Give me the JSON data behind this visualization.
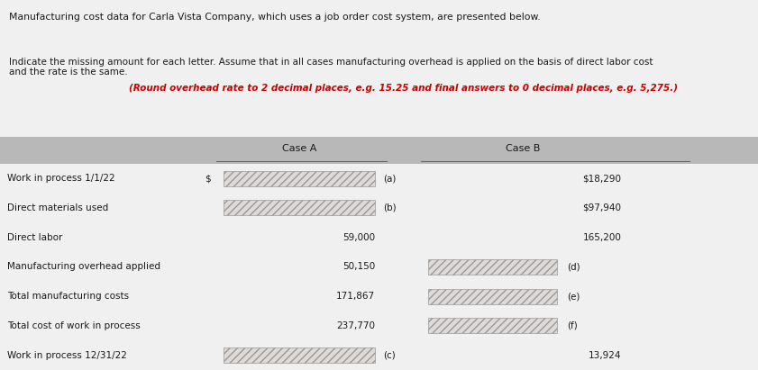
{
  "title_line1": "Manufacturing cost data for Carla Vista Company, which uses a job order cost system, are presented below.",
  "normal_text": "Indicate the missing amount for each letter. Assume that in all cases manufacturing overhead is applied on the basis of direct labor cost\nand the rate is the same. ",
  "bold_text": "(Round overhead rate to 2 decimal places, e.g. 15.25 and final answers to 0 decimal places, e.g. 5,275.)",
  "header_case_a": "Case A",
  "header_case_b": "Case B",
  "rows": [
    {
      "label": "Work in process 1/1/22",
      "case_a_prefix": "$",
      "case_a_value": "",
      "case_a_letter": "(a)",
      "case_a_blank": true,
      "case_b_value": "$18,290",
      "case_b_letter": "",
      "case_b_blank": false
    },
    {
      "label": "Direct materials used",
      "case_a_prefix": "",
      "case_a_value": "",
      "case_a_letter": "(b)",
      "case_a_blank": true,
      "case_b_value": "$97,940",
      "case_b_letter": "",
      "case_b_blank": false
    },
    {
      "label": "Direct labor",
      "case_a_prefix": "",
      "case_a_value": "59,000",
      "case_a_letter": "",
      "case_a_blank": false,
      "case_b_value": "165,200",
      "case_b_letter": "",
      "case_b_blank": false
    },
    {
      "label": "Manufacturing overhead applied",
      "case_a_prefix": "",
      "case_a_value": "50,150",
      "case_a_letter": "",
      "case_a_blank": false,
      "case_b_value": "",
      "case_b_letter": "(d)",
      "case_b_blank": true
    },
    {
      "label": "Total manufacturing costs",
      "case_a_prefix": "",
      "case_a_value": "171,867",
      "case_a_letter": "",
      "case_a_blank": false,
      "case_b_value": "",
      "case_b_letter": "(e)",
      "case_b_blank": true
    },
    {
      "label": "Total cost of work in process",
      "case_a_prefix": "",
      "case_a_value": "237,770",
      "case_a_letter": "",
      "case_a_blank": false,
      "case_b_value": "",
      "case_b_letter": "(f)",
      "case_b_blank": true
    },
    {
      "label": "Work in process 12/31/22",
      "case_a_prefix": "",
      "case_a_value": "",
      "case_a_letter": "(c)",
      "case_a_blank": true,
      "case_b_value": "13,924",
      "case_b_letter": "",
      "case_b_blank": false
    }
  ],
  "bg_color": "#eeeeee",
  "header_bg": "#b8b8b8",
  "blank_fill_light": "#e8e4e4",
  "blank_fill_dark": "#d8d4d4",
  "text_color": "#1a1a1a",
  "bold_color": "#cc0000",
  "figure_bg": "#f0f0f0"
}
